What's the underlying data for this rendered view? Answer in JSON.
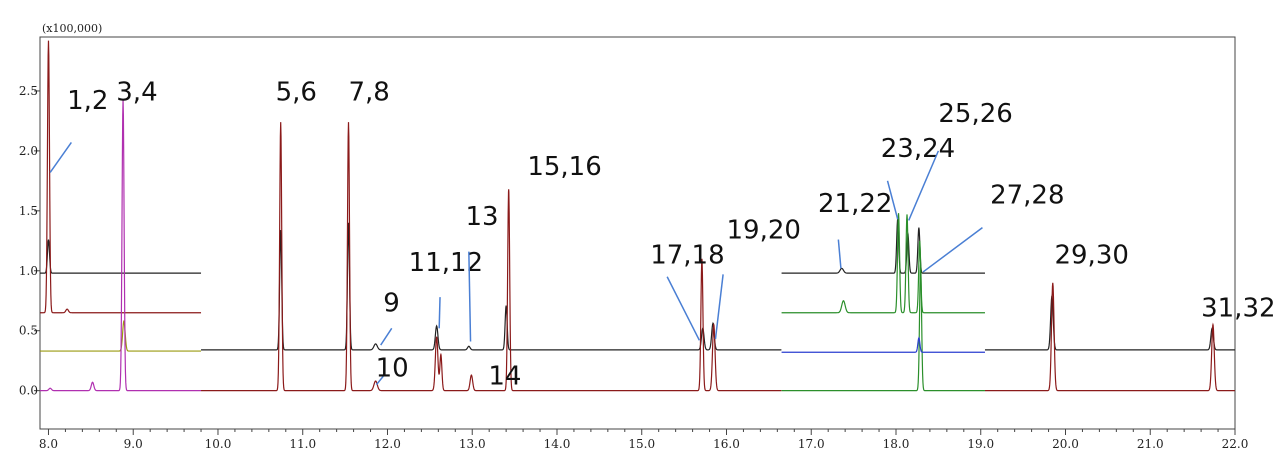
{
  "chart_data": {
    "type": "line",
    "title": "",
    "xlabel": "",
    "ylabel": "",
    "scale_label": "(x100,000)",
    "xlim": [
      7.9,
      22.0
    ],
    "ylim": [
      -0.32,
      2.95
    ],
    "x_ticks": [
      8.0,
      9.0,
      10.0,
      11.0,
      12.0,
      13.0,
      14.0,
      15.0,
      16.0,
      17.0,
      18.0,
      19.0,
      20.0,
      21.0,
      22.0
    ],
    "x_tick_labels": [
      "8.0",
      "9.0",
      "10.0",
      "11.0",
      "12.0",
      "13.0",
      "14.0",
      "15.0",
      "16.0",
      "17.0",
      "18.0",
      "19.0",
      "20.0",
      "21.0",
      "22.0"
    ],
    "y_ticks": [
      0.0,
      0.5,
      1.0,
      1.5,
      2.0,
      2.5
    ],
    "y_tick_labels": [
      "0.0",
      "0.5",
      "1.0",
      "1.5",
      "2.0",
      "2.5"
    ],
    "grid": false,
    "legend": "none",
    "series": [
      {
        "color": "#222222",
        "segments": [
          {
            "x_start": 7.9,
            "x_end": 9.8,
            "baseline": 0.98,
            "peaks": [
              {
                "x": 8.0,
                "h": 0.28,
                "w": 0.012
              }
            ]
          },
          {
            "x_start": 9.8,
            "x_end": 16.65,
            "baseline": 0.34,
            "peaks": [
              {
                "x": 10.74,
                "h": 1.0,
                "w": 0.012
              },
              {
                "x": 11.54,
                "h": 1.06,
                "w": 0.012
              },
              {
                "x": 11.86,
                "h": 0.05,
                "w": 0.02
              },
              {
                "x": 12.58,
                "h": 0.2,
                "w": 0.015
              },
              {
                "x": 12.96,
                "h": 0.03,
                "w": 0.015
              },
              {
                "x": 13.4,
                "h": 0.37,
                "w": 0.012
              },
              {
                "x": 15.72,
                "h": 0.18,
                "w": 0.015
              },
              {
                "x": 15.84,
                "h": 0.22,
                "w": 0.015
              }
            ]
          },
          {
            "x_start": 16.65,
            "x_end": 19.05,
            "baseline": 0.98,
            "peaks": [
              {
                "x": 17.36,
                "h": 0.04,
                "w": 0.02
              },
              {
                "x": 18.02,
                "h": 0.45,
                "w": 0.012
              },
              {
                "x": 18.14,
                "h": 0.33,
                "w": 0.012
              },
              {
                "x": 18.27,
                "h": 0.38,
                "w": 0.012
              }
            ]
          },
          {
            "x_start": 19.05,
            "x_end": 22.0,
            "baseline": 0.34,
            "peaks": [
              {
                "x": 19.84,
                "h": 0.45,
                "w": 0.015
              },
              {
                "x": 21.73,
                "h": 0.18,
                "w": 0.015
              }
            ]
          }
        ]
      },
      {
        "color": "#8b1a1a",
        "segments": [
          {
            "x_start": 7.9,
            "x_end": 9.8,
            "baseline": 0.65,
            "peaks": [
              {
                "x": 8.0,
                "h": 2.27,
                "w": 0.012
              },
              {
                "x": 8.22,
                "h": 0.03,
                "w": 0.015
              }
            ]
          },
          {
            "x_start": 9.8,
            "x_end": 16.65,
            "baseline": 0.0,
            "peaks": [
              {
                "x": 10.74,
                "h": 2.24,
                "w": 0.012
              },
              {
                "x": 11.54,
                "h": 2.24,
                "w": 0.012
              },
              {
                "x": 11.86,
                "h": 0.08,
                "w": 0.02
              },
              {
                "x": 12.58,
                "h": 0.45,
                "w": 0.015
              },
              {
                "x": 12.63,
                "h": 0.3,
                "w": 0.012
              },
              {
                "x": 12.99,
                "h": 0.13,
                "w": 0.015
              },
              {
                "x": 13.43,
                "h": 1.68,
                "w": 0.012
              },
              {
                "x": 15.71,
                "h": 1.1,
                "w": 0.012
              },
              {
                "x": 15.85,
                "h": 0.55,
                "w": 0.015
              }
            ]
          },
          {
            "x_start": 19.05,
            "x_end": 22.0,
            "baseline": 0.0,
            "peaks": [
              {
                "x": 19.85,
                "h": 0.9,
                "w": 0.015
              },
              {
                "x": 21.74,
                "h": 0.55,
                "w": 0.015
              }
            ]
          }
        ]
      },
      {
        "color": "#9a9a10",
        "segments": [
          {
            "x_start": 7.9,
            "x_end": 9.8,
            "baseline": 0.33,
            "peaks": [
              {
                "x": 8.89,
                "h": 0.25,
                "w": 0.015
              }
            ]
          }
        ]
      },
      {
        "color": "#b030b0",
        "segments": [
          {
            "x_start": 7.9,
            "x_end": 9.8,
            "baseline": 0.0,
            "peaks": [
              {
                "x": 8.02,
                "h": 0.02,
                "w": 0.015
              },
              {
                "x": 8.52,
                "h": 0.07,
                "w": 0.015
              },
              {
                "x": 8.88,
                "h": 2.43,
                "w": 0.012
              }
            ]
          }
        ]
      },
      {
        "color": "#2b8f2b",
        "segments": [
          {
            "x_start": 16.65,
            "x_end": 19.05,
            "baseline": 0.65,
            "peaks": [
              {
                "x": 17.38,
                "h": 0.1,
                "w": 0.02
              },
              {
                "x": 18.03,
                "h": 0.83,
                "w": 0.012
              },
              {
                "x": 18.13,
                "h": 0.82,
                "w": 0.012
              },
              {
                "x": 18.28,
                "h": 0.6,
                "w": 0.012
              }
            ]
          },
          {
            "x_start": 16.65,
            "x_end": 19.05,
            "baseline": 0.0,
            "peaks": [
              {
                "x": 18.29,
                "h": 1.05,
                "w": 0.012
              }
            ]
          }
        ]
      },
      {
        "color": "#2b3fd0",
        "segments": [
          {
            "x_start": 16.65,
            "x_end": 19.05,
            "baseline": 0.32,
            "peaks": [
              {
                "x": 18.27,
                "h": 0.12,
                "w": 0.012
              }
            ]
          }
        ]
      }
    ],
    "annotations": [
      {
        "text": "1,2",
        "label_x": 8.22,
        "label_y": 2.35,
        "line": [
          [
            8.27,
            2.07
          ],
          [
            8.02,
            1.82
          ]
        ]
      },
      {
        "text": "3,4",
        "label_x": 8.8,
        "label_y": 2.42,
        "line": []
      },
      {
        "text": "5,6",
        "label_x": 10.68,
        "label_y": 2.42,
        "line": []
      },
      {
        "text": "7,8",
        "label_x": 11.54,
        "label_y": 2.42,
        "line": []
      },
      {
        "text": "9",
        "label_x": 11.95,
        "label_y": 0.66,
        "line": [
          [
            12.05,
            0.52
          ],
          [
            11.92,
            0.38
          ]
        ]
      },
      {
        "text": "10",
        "label_x": 11.86,
        "label_y": 0.12,
        "line": [
          [
            11.95,
            0.12
          ],
          [
            11.87,
            0.05
          ]
        ]
      },
      {
        "text": "11,12",
        "label_x": 12.25,
        "label_y": 1.0,
        "line": [
          [
            12.62,
            0.78
          ],
          [
            12.61,
            0.52
          ]
        ]
      },
      {
        "text": "13",
        "label_x": 12.92,
        "label_y": 1.38,
        "line": [
          [
            12.96,
            1.16
          ],
          [
            12.98,
            0.41
          ]
        ]
      },
      {
        "text": "14",
        "label_x": 13.19,
        "label_y": 0.05,
        "line": []
      },
      {
        "text": "15,16",
        "label_x": 13.65,
        "label_y": 1.8,
        "line": []
      },
      {
        "text": "17,18",
        "label_x": 15.1,
        "label_y": 1.06,
        "line": [
          [
            15.3,
            0.95
          ],
          [
            15.68,
            0.42
          ]
        ]
      },
      {
        "text": "19,20",
        "label_x": 16.0,
        "label_y": 1.27,
        "line": [
          [
            15.96,
            0.97
          ],
          [
            15.87,
            0.43
          ]
        ]
      },
      {
        "text": "21,22",
        "label_x": 17.08,
        "label_y": 1.49,
        "line": [
          [
            17.32,
            1.26
          ],
          [
            17.35,
            1.02
          ]
        ]
      },
      {
        "text": "23,24",
        "label_x": 17.82,
        "label_y": 1.95,
        "line": [
          [
            17.9,
            1.75
          ],
          [
            18.02,
            1.43
          ]
        ]
      },
      {
        "text": "25,26",
        "label_x": 18.5,
        "label_y": 2.24,
        "line": [
          [
            18.5,
            2.0
          ],
          [
            18.15,
            1.42
          ]
        ]
      },
      {
        "text": "27,28",
        "label_x": 19.11,
        "label_y": 1.56,
        "line": [
          [
            19.02,
            1.36
          ],
          [
            18.32,
            0.99
          ]
        ]
      },
      {
        "text": "29,30",
        "label_x": 19.87,
        "label_y": 1.06,
        "line": []
      },
      {
        "text": "31,32",
        "label_x": 21.6,
        "label_y": 0.62,
        "line": []
      }
    ]
  }
}
